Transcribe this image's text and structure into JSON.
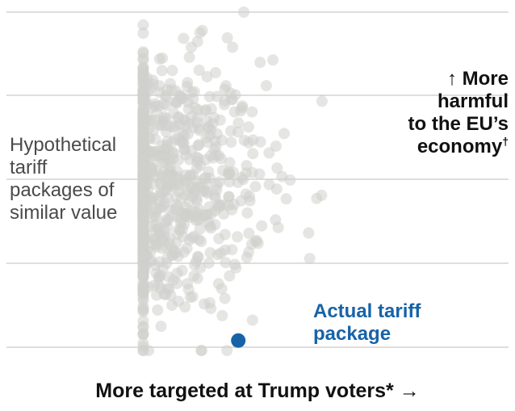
{
  "chart_data": {
    "type": "scatter",
    "title": "",
    "xlabel": "More targeted at Trump voters* →",
    "ylabel": "↑ More harmful to the EU’s economy†",
    "xlim": [
      0,
      1
    ],
    "ylim": [
      0,
      1
    ],
    "grid": "horizontal",
    "colors": {
      "simulated": "#cfcfcc",
      "actual": "#1763a8",
      "grid": "#bdbdbd"
    },
    "annotations": {
      "simulated": [
        "Hypothetical",
        "tariff",
        "packages of",
        "similar value"
      ],
      "harmful": [
        "↑ More",
        "harmful",
        "to the EU’s",
        "economy"
      ],
      "harmful_mark": "†",
      "actual": [
        "Actual tariff",
        "package"
      ]
    },
    "series": [
      {
        "name": "Hypothetical tariff packages of similar value",
        "generated": true,
        "count": 950,
        "x_center": 0.28,
        "x_spread": 0.21,
        "y_center": 0.48,
        "y_spread": 0.2
      },
      {
        "name": "Actual tariff package",
        "values": [
          {
            "x": 0.46,
            "y": 0.02
          }
        ]
      }
    ]
  }
}
